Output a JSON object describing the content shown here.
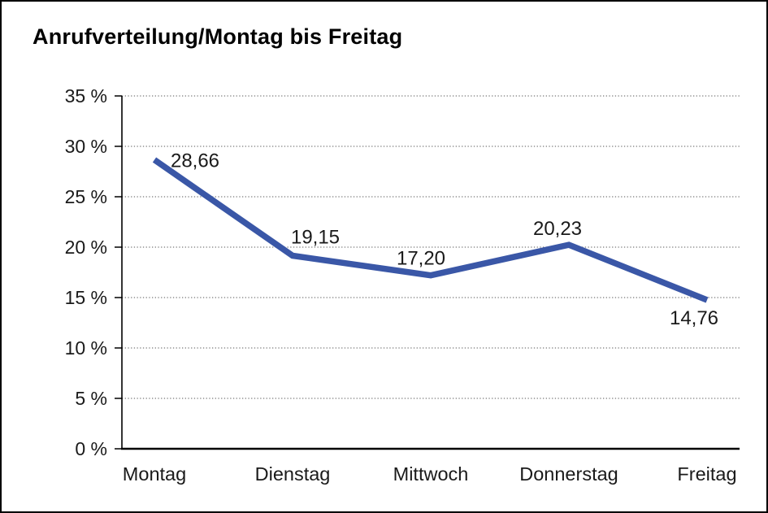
{
  "title": "Anrufverteilung/Montag bis Freitag",
  "chart_data": {
    "type": "line",
    "title": "Anrufverteilung/Montag bis Freitag",
    "categories": [
      "Montag",
      "Dienstag",
      "Mittwoch",
      "Donnerstag",
      "Freitag"
    ],
    "values": [
      28.66,
      19.15,
      17.2,
      20.23,
      14.76
    ],
    "data_labels": [
      "28,66",
      "19,15",
      "17,20",
      "20,23",
      "14,76"
    ],
    "xlabel": "",
    "ylabel": "",
    "ylim": [
      0,
      35
    ],
    "ytick_step": 5,
    "ytick_labels": [
      "0 %",
      "5 %",
      "10 %",
      "15 %",
      "20 %",
      "25 %",
      "30 %",
      "35 %"
    ],
    "grid": "horizontal-dotted",
    "legend": "none",
    "line_color": "#3A57A7",
    "axis_color": "#000000",
    "grid_color": "#787878",
    "text_color": "#1a1a1a"
  }
}
